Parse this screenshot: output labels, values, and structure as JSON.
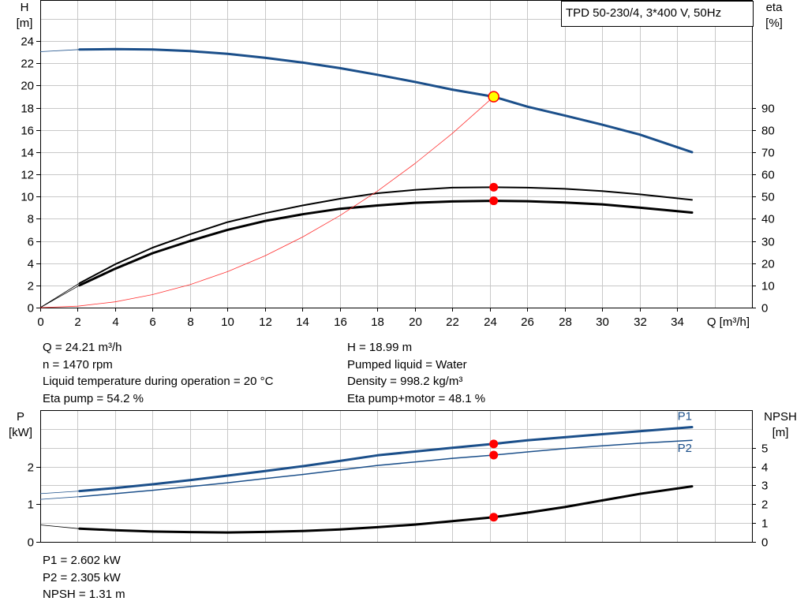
{
  "chart_data": [
    {
      "type": "line",
      "legend_box": "TPD 50-230/4, 3*400 V, 50Hz",
      "legend_placement": "top-right",
      "grid": true,
      "x_axis": {
        "label": "Q [m³/h]",
        "ticks": [
          0,
          2,
          4,
          6,
          8,
          10,
          12,
          14,
          16,
          18,
          20,
          22,
          24,
          26,
          28,
          30,
          32,
          34
        ],
        "lim": [
          0,
          38
        ]
      },
      "y_left": {
        "label_top": "H",
        "label_unit": "[m]",
        "ticks": [
          0,
          2,
          4,
          6,
          8,
          10,
          12,
          14,
          16,
          18,
          20,
          22,
          24
        ],
        "lim": [
          0,
          27.7
        ]
      },
      "y_right": {
        "label_top": "eta",
        "label_unit": "[%]",
        "ticks": [
          0,
          10,
          20,
          30,
          40,
          50,
          60,
          70,
          80,
          90
        ],
        "lim": [
          0,
          138.5
        ]
      },
      "series": [
        {
          "name": "H",
          "axis": "left",
          "color": "#1b4f8a",
          "width": 3,
          "x": [
            2.1,
            4,
            6,
            8,
            10,
            12,
            14,
            16,
            18,
            20,
            22,
            24.21,
            26,
            28,
            30,
            32,
            34.8
          ],
          "y": [
            23.24,
            23.28,
            23.24,
            23.1,
            22.85,
            22.5,
            22.07,
            21.56,
            20.97,
            20.33,
            19.63,
            18.99,
            18.1,
            17.3,
            16.47,
            15.58,
            14.0
          ],
          "lead_in": {
            "x": [
              0,
              2.1
            ],
            "y": [
              23.05,
              23.24
            ]
          }
        },
        {
          "name": "Eta pump",
          "axis": "right",
          "color": "#000000",
          "width": 2,
          "x": [
            2.1,
            4,
            6,
            8,
            10,
            12,
            14,
            16,
            18,
            20,
            22,
            24.21,
            26,
            28,
            30,
            32,
            34.8
          ],
          "y": [
            11,
            19.5,
            27,
            33,
            38.5,
            42.5,
            46,
            49,
            51.5,
            53,
            54,
            54.2,
            54,
            53.5,
            52.5,
            51,
            48.5
          ],
          "lead_in": {
            "x": [
              0,
              2.1
            ],
            "y": [
              0,
              11
            ]
          }
        },
        {
          "name": "Eta pump+motor",
          "axis": "right",
          "color": "#000000",
          "width": 3,
          "x": [
            2.1,
            4,
            6,
            8,
            10,
            12,
            14,
            16,
            18,
            20,
            22,
            24.21,
            26,
            28,
            30,
            32,
            34.8
          ],
          "y": [
            10,
            17.5,
            24.5,
            30,
            35,
            39,
            42,
            44.5,
            46,
            47.2,
            47.8,
            48.1,
            47.9,
            47.3,
            46.5,
            45,
            42.8
          ],
          "lead_in": {
            "x": [
              0,
              2.1
            ],
            "y": [
              0,
              10
            ]
          }
        },
        {
          "name": "System curve",
          "axis": "left",
          "color": "#ff3030",
          "width": 0.8,
          "x": [
            0,
            2,
            4,
            6,
            8,
            10,
            12,
            14,
            16,
            18,
            20,
            22,
            24.21
          ],
          "y": [
            0,
            0.13,
            0.52,
            1.17,
            2.07,
            3.24,
            4.66,
            6.35,
            8.29,
            10.49,
            12.96,
            15.68,
            18.99
          ]
        }
      ],
      "markers": [
        {
          "axis": "left",
          "x": 24.21,
          "y": 18.99,
          "fill": "#ffff00",
          "stroke": "#ff0000"
        },
        {
          "axis": "right",
          "x": 24.21,
          "y": 54.2,
          "fill": "#ff0000"
        },
        {
          "axis": "right",
          "x": 24.21,
          "y": 48.1,
          "fill": "#ff0000"
        }
      ]
    },
    {
      "type": "line",
      "grid": true,
      "x_axis": {
        "lim": [
          0,
          38
        ]
      },
      "y_left": {
        "label_top": "P",
        "label_unit": "[kW]",
        "ticks": [
          0,
          1,
          2
        ],
        "lim": [
          0,
          3.5
        ]
      },
      "y_right": {
        "label_top": "NPSH",
        "label_unit": "[m]",
        "ticks": [
          0,
          1,
          2,
          3,
          4,
          5
        ],
        "lim": [
          0,
          7
        ]
      },
      "series": [
        {
          "name": "P1",
          "axis": "left",
          "color": "#1b4f8a",
          "width": 3,
          "x": [
            2.1,
            4,
            6,
            8,
            10,
            12,
            14,
            16,
            18,
            20,
            22,
            24.21,
            26,
            28,
            30,
            32,
            34.8
          ],
          "y": [
            1.35,
            1.43,
            1.53,
            1.64,
            1.76,
            1.88,
            2.01,
            2.15,
            2.3,
            2.4,
            2.5,
            2.602,
            2.7,
            2.78,
            2.86,
            2.94,
            3.05
          ],
          "lead_in": {
            "x": [
              0,
              2.1
            ],
            "y": [
              1.28,
              1.35
            ]
          },
          "end_label": "P1"
        },
        {
          "name": "P2",
          "axis": "left",
          "color": "#1b4f8a",
          "width": 1.5,
          "x": [
            2.1,
            4,
            6,
            8,
            10,
            12,
            14,
            16,
            18,
            20,
            22,
            24.21,
            26,
            28,
            30,
            32,
            34.8
          ],
          "y": [
            1.2,
            1.28,
            1.37,
            1.47,
            1.57,
            1.68,
            1.79,
            1.91,
            2.03,
            2.12,
            2.22,
            2.305,
            2.39,
            2.48,
            2.55,
            2.62,
            2.7
          ],
          "lead_in": {
            "x": [
              0,
              2.1
            ],
            "y": [
              1.13,
              1.2
            ]
          },
          "end_label": "P2"
        },
        {
          "name": "NPSH",
          "axis": "right",
          "color": "#000000",
          "width": 3,
          "x": [
            2.1,
            4,
            6,
            8,
            10,
            12,
            14,
            16,
            18,
            20,
            22,
            24.21,
            26,
            28,
            30,
            32,
            34.8
          ],
          "y": [
            0.7,
            0.62,
            0.55,
            0.52,
            0.5,
            0.53,
            0.58,
            0.66,
            0.78,
            0.92,
            1.1,
            1.31,
            1.55,
            1.85,
            2.2,
            2.55,
            2.95
          ],
          "lead_in": {
            "x": [
              0,
              2.1
            ],
            "y": [
              0.9,
              0.7
            ]
          }
        }
      ],
      "markers": [
        {
          "axis": "left",
          "x": 24.21,
          "y": 2.602,
          "fill": "#ff0000"
        },
        {
          "axis": "left",
          "x": 24.21,
          "y": 2.305,
          "fill": "#ff0000"
        },
        {
          "axis": "right",
          "x": 24.21,
          "y": 1.31,
          "fill": "#ff0000"
        }
      ]
    }
  ],
  "operating_point": {
    "q": "Q = 24.21 m³/h",
    "n": "n = 1470 rpm",
    "temperature": "Liquid temperature during operation = 20 °C",
    "eta_pump": "Eta pump = 54.2 %",
    "h": "H = 18.99 m",
    "liquid": "Pumped liquid = Water",
    "density": "Density = 998.2 kg/m³",
    "eta_pump_motor": "Eta pump+motor = 48.1 %"
  },
  "power_point": {
    "p1": "P1 = 2.602 kW",
    "p2": "P2 = 2.305 kW",
    "npsh": "NPSH = 1.31 m"
  }
}
